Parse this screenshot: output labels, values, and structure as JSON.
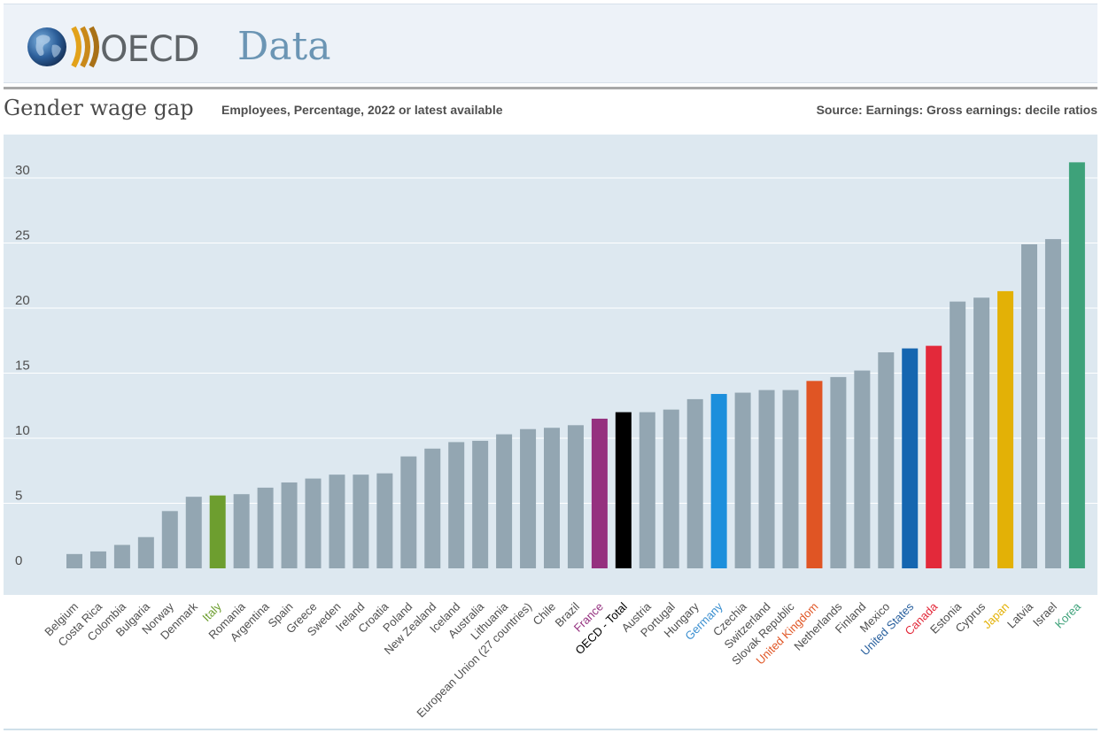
{
  "header": {
    "logo_text": "OECD",
    "section_title": "Data"
  },
  "chart_data": {
    "type": "bar",
    "title": "Gender wage gap",
    "subtitle": "Employees, Percentage, 2022 or latest available",
    "source": "Source: Earnings: Gross earnings: decile ratios",
    "xlabel": "",
    "ylabel": "",
    "ylim": [
      -2,
      32
    ],
    "yticks": [
      0,
      5,
      10,
      15,
      20,
      25,
      30
    ],
    "grid": true,
    "default_color": "#93a6b2",
    "categories": [
      "Belgium",
      "Costa Rica",
      "Colombia",
      "Bulgaria",
      "Norway",
      "Denmark",
      "Italy",
      "Romania",
      "Argentina",
      "Spain",
      "Greece",
      "Sweden",
      "Ireland",
      "Croatia",
      "Poland",
      "New Zealand",
      "Iceland",
      "Australia",
      "Lithuania",
      "European Union (27 countries)",
      "Chile",
      "Brazil",
      "France",
      "OECD - Total",
      "Austria",
      "Portugal",
      "Hungary",
      "Germany",
      "Czechia",
      "Switzerland",
      "Slovak Republic",
      "United Kingdom",
      "Netherlands",
      "Finland",
      "Mexico",
      "United States",
      "Canada",
      "Estonia",
      "Cyprus",
      "Japan",
      "Latvia",
      "Israel",
      "Korea"
    ],
    "values": [
      1.1,
      1.3,
      1.8,
      2.4,
      4.4,
      5.5,
      5.6,
      5.7,
      6.2,
      6.6,
      6.9,
      7.2,
      7.2,
      7.3,
      8.6,
      9.2,
      9.7,
      9.8,
      10.3,
      10.7,
      10.8,
      11.0,
      11.5,
      12.0,
      12.0,
      12.2,
      13.0,
      13.4,
      13.5,
      13.7,
      13.7,
      14.4,
      14.7,
      15.2,
      16.6,
      16.9,
      17.1,
      20.5,
      20.8,
      21.3,
      24.9,
      25.3,
      31.2
    ],
    "highlights": {
      "Italy": "#6d9e2f",
      "France": "#95317f",
      "OECD - Total": "#000000",
      "Germany": "#1c8fdc",
      "United Kingdom": "#e05524",
      "United States": "#1566b0",
      "Canada": "#e3293a",
      "Japan": "#e3b106",
      "Korea": "#3ea27a"
    },
    "label_colors": {
      "Italy": "#6d9e2f",
      "France": "#95317f",
      "OECD - Total": "#000000",
      "Germany": "#3a8fd0",
      "United Kingdom": "#e05524",
      "United States": "#29609e",
      "Canada": "#e3293a",
      "Japan": "#e3b106",
      "Korea": "#3ea27a"
    }
  }
}
